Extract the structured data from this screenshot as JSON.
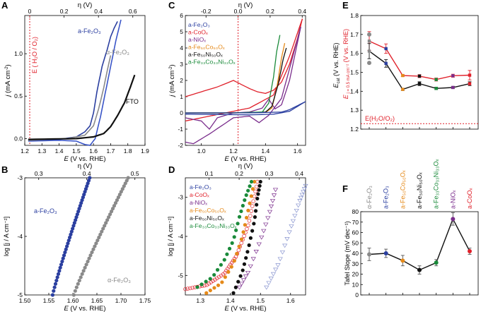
{
  "figure": {
    "panels": [
      {
        "letter": "A"
      },
      {
        "letter": "B"
      },
      {
        "letter": "C"
      },
      {
        "letter": "D"
      },
      {
        "letter": "E"
      },
      {
        "letter": "F"
      }
    ]
  },
  "chart_data": [
    {
      "id": "A",
      "type": "line",
      "xlabel_pre": "E",
      "xlabel_post": " (V vs. RHE)",
      "ylabel_pre": "j",
      "ylabel_post": " (mA cm",
      "toplabel": "η (V)",
      "xlim": [
        1.2,
        1.9
      ],
      "ylim": [
        -0.08,
        1.45
      ],
      "xticks": [
        "1.2",
        "1.3",
        "1.4",
        "1.5",
        "1.6",
        "1.7",
        "1.8",
        "1.9"
      ],
      "yticks": [
        "0.0",
        "0.5",
        "1.0"
      ],
      "topticks": [
        "0",
        "0.2",
        "0.4",
        "0.6"
      ],
      "vline": {
        "x": 1.229,
        "label": "E ( H₂O / O₂)",
        "color": "#e0202a"
      },
      "series": [
        {
          "name": "a-Fe₂O₃",
          "color": "#2b3fa0",
          "x": [
            1.22,
            1.4,
            1.5,
            1.55,
            1.58,
            1.6,
            1.62,
            1.65,
            1.68,
            1.7,
            1.72,
            1.74
          ],
          "y": [
            -0.02,
            -0.01,
            0.02,
            0.08,
            0.15,
            0.3,
            0.55,
            0.85,
            1.05,
            1.2,
            1.3,
            1.38
          ]
        },
        {
          "name": "a-Fe₂O₃ (2)",
          "color": "#3a55c8",
          "x": [
            1.22,
            1.4,
            1.5,
            1.55,
            1.58,
            1.61,
            1.64,
            1.67,
            1.7,
            1.73,
            1.76
          ],
          "y": [
            -0.03,
            -0.02,
            -0.03,
            -0.07,
            -0.08,
            0.0,
            0.25,
            0.55,
            0.85,
            1.15,
            1.4
          ]
        },
        {
          "name": "α-Fe₂O₃",
          "color": "#8a8a8a",
          "x": [
            1.22,
            1.45,
            1.55,
            1.6,
            1.63,
            1.66,
            1.68,
            1.7
          ],
          "y": [
            -0.02,
            0.0,
            0.04,
            0.15,
            0.35,
            0.6,
            0.8,
            0.98
          ]
        },
        {
          "name": "FTO",
          "color": "#111111",
          "x": [
            1.22,
            1.5,
            1.6,
            1.66,
            1.7,
            1.74,
            1.78,
            1.81,
            1.84
          ],
          "y": [
            -0.01,
            0.0,
            0.02,
            0.06,
            0.14,
            0.27,
            0.42,
            0.58,
            0.75
          ]
        }
      ]
    },
    {
      "id": "B",
      "type": "scatter",
      "xlabel_pre": "E",
      "xlabel_post": " (V vs. RHE)",
      "ylabel": "log [j / A cm⁻²]",
      "toplabel": "η (V)",
      "xlim": [
        1.5,
        1.75
      ],
      "ylim": [
        -5,
        -3
      ],
      "xticks": [
        "1.50",
        "1.55",
        "1.60",
        "1.65",
        "1.70",
        "1.75"
      ],
      "yticks": [
        "-5",
        "-4",
        "-3"
      ],
      "topticks": [
        "0.3",
        "0.4",
        "0.5"
      ],
      "series": [
        {
          "name": "a-Fe₂O₃",
          "color": "#2b3fa0",
          "x0": 1.558,
          "x1": 1.635,
          "y0": -5,
          "y1": -3,
          "n": 40
        },
        {
          "name": "α-Fe₂O₃",
          "color": "#8a8a8a",
          "x0": 1.602,
          "x1": 1.715,
          "y0": -5,
          "y1": -3,
          "n": 40
        }
      ]
    },
    {
      "id": "C",
      "type": "line",
      "xlabel_pre": "E",
      "xlabel_post": " (V vs. RHE)",
      "ylabel_pre": "j",
      "ylabel_post": " (mA cm",
      "toplabel": "η (V)",
      "xlim": [
        0.9,
        1.65
      ],
      "ylim": [
        -2,
        6
      ],
      "xticks": [
        "1.0",
        "1.2",
        "1.4",
        "1.6"
      ],
      "yticks": [
        "-2",
        "-1",
        "0",
        "1",
        "2",
        "3",
        "4",
        "5",
        "6"
      ],
      "topticks": [
        "-0.2",
        "0.0",
        "0.2",
        "0.4"
      ],
      "vline": {
        "x": 1.229,
        "color": "#e0202a"
      },
      "legend": [
        {
          "label": "a-Fe₂O₃",
          "color": "#2b3fa0"
        },
        {
          "label": "a-CoOₓ",
          "color": "#e0202a"
        },
        {
          "label": "a-NiOₓ",
          "color": "#7a2d8c"
        },
        {
          "label": "a-Fe₅₀Co₅₀Oₓ",
          "color": "#e58a1a"
        },
        {
          "label": "a-Fe₅₀Ni₅₀Oₓ",
          "color": "#111111"
        },
        {
          "label": "a-Fe₃₃Co₃₃Ni₃₃Oₓ",
          "color": "#1a8a3a"
        }
      ],
      "series": [
        {
          "color": "#e0202a",
          "x": [
            0.9,
            1.0,
            1.1,
            1.2,
            1.3,
            1.35,
            1.4,
            1.45,
            1.5,
            1.55,
            1.6,
            1.63
          ],
          "y": [
            1.0,
            1.3,
            1.6,
            2.0,
            1.5,
            1.3,
            1.2,
            1.4,
            1.9,
            3.0,
            4.6,
            5.8
          ]
        },
        {
          "color": "#e0202a",
          "x": [
            1.63,
            1.55,
            1.45,
            1.3,
            1.2,
            1.1,
            1.0,
            0.9
          ],
          "y": [
            5.8,
            3.5,
            1.1,
            0.3,
            0.1,
            -0.1,
            -0.3,
            -0.5
          ]
        },
        {
          "color": "#7a2d8c",
          "x": [
            0.9,
            1.0,
            1.05,
            1.1,
            1.2,
            1.3,
            1.38,
            1.42,
            1.46,
            1.5,
            1.55,
            1.62
          ],
          "y": [
            -0.3,
            -0.5,
            -1.0,
            -0.3,
            0.0,
            0.05,
            0.3,
            0.85,
            0.25,
            0.5,
            2.0,
            5.3
          ]
        },
        {
          "color": "#7a2d8c",
          "x": [
            1.62,
            1.5,
            1.42,
            1.36,
            1.3,
            1.2,
            1.05,
            0.95,
            0.9
          ],
          "y": [
            5.3,
            0.9,
            -0.15,
            -0.6,
            -0.2,
            -0.3,
            -1.3,
            -1.9,
            -1.8
          ]
        },
        {
          "color": "#e58a1a",
          "x": [
            0.9,
            1.2,
            1.4,
            1.44,
            1.47,
            1.5,
            1.52
          ],
          "y": [
            0.0,
            0.0,
            0.03,
            0.3,
            1.5,
            3.4,
            4.3
          ]
        },
        {
          "color": "#111111",
          "x": [
            0.9,
            1.2,
            1.4,
            1.44,
            1.48,
            1.51,
            1.53
          ],
          "y": [
            0.0,
            0.0,
            0.05,
            0.4,
            1.8,
            3.3,
            4.0
          ]
        },
        {
          "color": "#1a8a3a",
          "x": [
            0.9,
            1.2,
            1.38,
            1.42,
            1.45,
            1.47,
            1.49
          ],
          "y": [
            0.0,
            0.0,
            0.05,
            0.6,
            2.2,
            3.8,
            4.8
          ]
        },
        {
          "color": "#2b3fa0",
          "x": [
            0.9,
            1.3,
            1.5,
            1.55,
            1.6,
            1.65
          ],
          "y": [
            0.0,
            0.0,
            0.05,
            0.2,
            0.45,
            0.7
          ]
        },
        {
          "color": "#2b3fa0",
          "x": [
            1.65,
            1.55,
            1.45,
            1.3,
            1.1,
            0.9
          ],
          "y": [
            0.7,
            0.1,
            -0.08,
            -0.12,
            -0.1,
            -0.08
          ]
        }
      ]
    },
    {
      "id": "D",
      "type": "scatter",
      "xlabel_pre": "E",
      "xlabel_post": " (V vs. RHE)",
      "ylabel": "log [j / A cm⁻²]",
      "toplabel": "η (V)",
      "xlim": [
        1.25,
        1.65
      ],
      "ylim": [
        -5.5,
        -2.5
      ],
      "xticks": [
        "1.3",
        "1.4",
        "1.5",
        "1.6"
      ],
      "yticks": [
        "-5",
        "-4",
        "-3"
      ],
      "topticks": [
        "0.1",
        "0.2",
        "0.3",
        "0.4"
      ],
      "legend": [
        {
          "label": "a-Fe₂O₃",
          "color": "#2b3fa0"
        },
        {
          "label": "a-CoOₓ",
          "color": "#e0202a"
        },
        {
          "label": "a-NiOₓ",
          "color": "#7a2d8c"
        },
        {
          "label": "a-Fe₅₀Co₅₀Oₓ",
          "color": "#e58a1a"
        },
        {
          "label": "a-Fe₅₀Ni₅₀Oₓ",
          "color": "#111111"
        },
        {
          "label": "a-Fe₃₃Co₃₃Ni₃₃Oₓ",
          "color": "#1a8a3a"
        }
      ],
      "series": [
        {
          "color": "#e0202a",
          "marker": "open-circle",
          "n": 45,
          "x": [
            1.25,
            1.32,
            1.38,
            1.42,
            1.46,
            1.49
          ],
          "y": [
            -5.35,
            -5.25,
            -4.95,
            -4.5,
            -3.7,
            -2.6
          ]
        },
        {
          "color": "#7a2d8c",
          "marker": "open-triangle",
          "n": 18,
          "x": [
            1.43,
            1.46,
            1.5,
            1.53,
            1.55
          ],
          "y": [
            -5.3,
            -4.9,
            -4.1,
            -3.4,
            -2.8
          ]
        },
        {
          "color": "#e58a1a",
          "marker": "dot",
          "n": 20,
          "x": [
            1.32,
            1.37,
            1.41,
            1.44,
            1.46,
            1.48
          ],
          "y": [
            -5.45,
            -5.2,
            -4.7,
            -4.0,
            -3.3,
            -2.6
          ]
        },
        {
          "color": "#111111",
          "marker": "dot",
          "n": 20,
          "x": [
            1.41,
            1.44,
            1.46,
            1.48,
            1.49,
            1.5
          ],
          "y": [
            -5.45,
            -4.9,
            -4.3,
            -3.6,
            -3.0,
            -2.6
          ]
        },
        {
          "color": "#1a8a3a",
          "marker": "dot",
          "n": 22,
          "x": [
            1.29,
            1.34,
            1.38,
            1.41,
            1.43,
            1.45,
            1.47
          ],
          "y": [
            -5.3,
            -5.05,
            -4.6,
            -4.1,
            -3.5,
            -3.0,
            -2.6
          ]
        },
        {
          "color": "#8a96d0",
          "marker": "open-triangle",
          "n": 22,
          "x": [
            1.52,
            1.56,
            1.6,
            1.63,
            1.65
          ],
          "y": [
            -5.3,
            -4.7,
            -3.8,
            -3.1,
            -2.7
          ]
        }
      ]
    },
    {
      "id": "E",
      "type": "line",
      "ylabel_black": "E",
      "ylabel_black_sub": "cat",
      "ylabel_black_post": " (V vs. RHE)",
      "ylabel_red": "E",
      "ylabel_red_sub": " j = 0.5 mA cm⁻²",
      "ylabel_red_post": " (V vs. RHE)",
      "ylim": [
        1.2,
        1.8
      ],
      "yticks": [
        "1.2",
        "1.3",
        "1.4",
        "1.5",
        "1.6",
        "1.7",
        "1.8"
      ],
      "hline": {
        "y": 1.229,
        "label": "E(H₂O/O₂)",
        "color": "#e0202a"
      },
      "series": [
        {
          "name": "red",
          "color": "#e0202a",
          "values": [
            1.665,
            1.625,
            1.483,
            1.48,
            1.462,
            1.482,
            1.485
          ],
          "errors": [
            0.05,
            0.025,
            0.005,
            0.008,
            0.008,
            0.008,
            0.025
          ]
        },
        {
          "name": "black",
          "color": "#111111",
          "values": [
            1.612,
            1.547,
            1.41,
            1.44,
            1.415,
            1.42,
            1.44
          ],
          "errors": [
            0.04,
            0.02,
            0.006,
            0.01,
            0.006,
            0.006,
            0.01
          ]
        }
      ],
      "grey": [
        1.7,
        1.55
      ],
      "point_colors": [
        "#8a8a8a",
        "#2b3fa0",
        "#e58a1a",
        "#111111",
        "#1a8a3a",
        "#7a2d8c",
        "#e0202a"
      ]
    },
    {
      "id": "F",
      "type": "line",
      "ylabel": "Tafel Slope (mV dec⁻¹)",
      "ylim": [
        0,
        80
      ],
      "yticks": [
        "0",
        "10",
        "20",
        "30",
        "40",
        "50",
        "60",
        "70",
        "80"
      ],
      "categories": [
        "α-Fe₂O₃",
        "a-Fe₂O₃",
        "a-Fe₅₀Co₅₀Oₓ",
        "a-Fe₅₀Ni₅₀Oₓ",
        "a-Fe₃₃Co₃₃Ni₃₃Oₓ",
        "a-NiOₓ",
        "a-CoOₓ"
      ],
      "category_colors": [
        "#8a8a8a",
        "#2b3fa0",
        "#e58a1a",
        "#111111",
        "#1a8a3a",
        "#7a2d8c",
        "#e0202a"
      ],
      "values": [
        39,
        40,
        33,
        24,
        31,
        73,
        42
      ],
      "errors": [
        6,
        4,
        5,
        4,
        3,
        6,
        3
      ]
    }
  ]
}
